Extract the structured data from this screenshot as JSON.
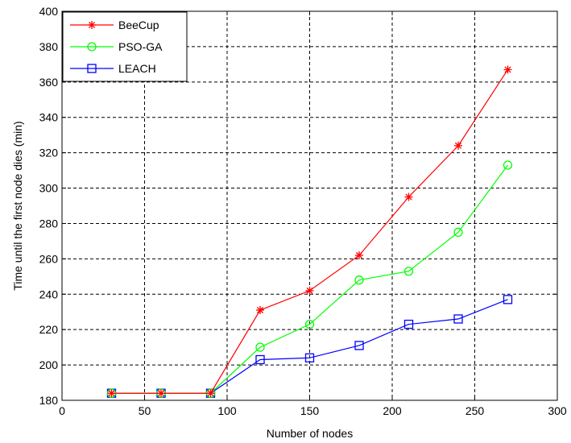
{
  "chart_data": {
    "type": "line",
    "title": "",
    "xlabel": "Number of nodes",
    "ylabel": "Time until the first node dies (min)",
    "xlim": [
      0,
      300
    ],
    "ylim": [
      180,
      400
    ],
    "xticks": [
      0,
      50,
      100,
      150,
      200,
      250,
      300
    ],
    "yticks": [
      180,
      200,
      220,
      240,
      260,
      280,
      300,
      320,
      340,
      360,
      380,
      400
    ],
    "grid": true,
    "legend_position": "top-left",
    "x": [
      30,
      60,
      90,
      120,
      150,
      180,
      210,
      240,
      270
    ],
    "series": [
      {
        "name": "BeeCup",
        "color": "#ff0000",
        "marker": "star",
        "values": [
          184,
          184,
          184,
          231,
          242,
          262,
          295,
          324,
          367
        ]
      },
      {
        "name": "PSO-GA",
        "color": "#00ff00",
        "marker": "circle",
        "values": [
          184,
          184,
          184,
          210,
          223,
          248,
          253,
          275,
          313
        ]
      },
      {
        "name": "LEACH",
        "color": "#0000ff",
        "marker": "square",
        "values": [
          184,
          184,
          184,
          203,
          204,
          211,
          223,
          226,
          237
        ]
      }
    ]
  }
}
